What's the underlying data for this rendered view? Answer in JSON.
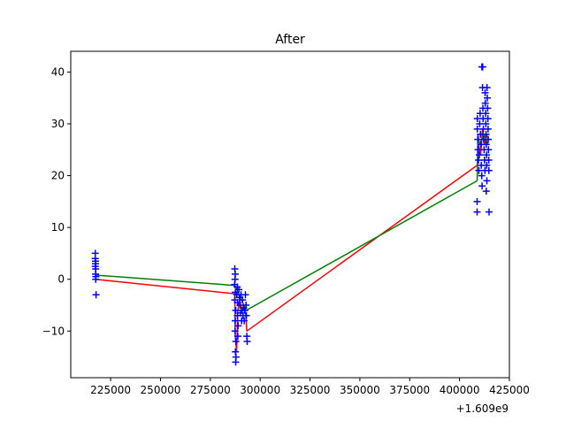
{
  "chart_data": {
    "type": "scatter",
    "title": "After",
    "xlabel": "",
    "ylabel": "",
    "x_offset_text": "+1.609e9",
    "xlim": [
      205000,
      425000
    ],
    "ylim": [
      -19,
      44
    ],
    "x_ticks": [
      225000,
      250000,
      275000,
      300000,
      325000,
      350000,
      375000,
      400000,
      425000
    ],
    "x_tick_labels": [
      "225000",
      "250000",
      "275000",
      "300000",
      "325000",
      "350000",
      "375000",
      "400000",
      "425000"
    ],
    "y_ticks": [
      -10,
      0,
      10,
      20,
      30,
      40
    ],
    "y_tick_labels": [
      "−10",
      "0",
      "10",
      "20",
      "30",
      "40"
    ],
    "grid": false,
    "colors": {
      "points": "#0000ff",
      "red_line": "#ff0000",
      "green_line": "#008000"
    },
    "series": [
      {
        "marker": "plus",
        "color": "#0000ff",
        "points": [
          [
            217300,
            5
          ],
          [
            217300,
            4
          ],
          [
            217400,
            3.5
          ],
          [
            217300,
            2.5
          ],
          [
            217500,
            2
          ],
          [
            217400,
            1
          ],
          [
            217600,
            0.5
          ],
          [
            217500,
            0
          ],
          [
            217700,
            -3
          ],
          [
            217400,
            3
          ],
          [
            287300,
            2
          ],
          [
            287500,
            1
          ],
          [
            287400,
            0
          ],
          [
            287200,
            -1
          ],
          [
            287600,
            -2.5
          ],
          [
            287300,
            -4
          ],
          [
            287700,
            -6
          ],
          [
            287500,
            -8
          ],
          [
            287400,
            -10
          ],
          [
            287800,
            -12
          ],
          [
            287600,
            -14
          ],
          [
            287900,
            -15
          ],
          [
            287700,
            -16
          ],
          [
            288300,
            -3
          ],
          [
            288500,
            -1.5
          ],
          [
            288700,
            -4.5
          ],
          [
            288600,
            -7
          ],
          [
            288900,
            -9
          ],
          [
            288800,
            -11
          ],
          [
            289300,
            -2
          ],
          [
            289600,
            -3.5
          ],
          [
            289900,
            -5
          ],
          [
            290100,
            -6.5
          ],
          [
            290400,
            -3
          ],
          [
            290700,
            -8
          ],
          [
            290900,
            -6
          ],
          [
            291200,
            -4
          ],
          [
            291400,
            -7
          ],
          [
            291700,
            -5.5
          ],
          [
            292000,
            -8
          ],
          [
            292300,
            -6
          ],
          [
            292600,
            -3
          ],
          [
            292900,
            -5
          ],
          [
            293100,
            -7
          ],
          [
            293300,
            -11
          ],
          [
            293500,
            -12
          ],
          [
            408800,
            15
          ],
          [
            408800,
            13
          ],
          [
            408900,
            31
          ],
          [
            408900,
            29
          ],
          [
            409100,
            27
          ],
          [
            409300,
            25
          ],
          [
            409500,
            23
          ],
          [
            409700,
            21
          ],
          [
            409900,
            24
          ],
          [
            410100,
            30
          ],
          [
            410300,
            32
          ],
          [
            410500,
            28
          ],
          [
            410700,
            26
          ],
          [
            410900,
            22
          ],
          [
            411100,
            20
          ],
          [
            411300,
            18
          ],
          [
            411200,
            41
          ],
          [
            411600,
            41
          ],
          [
            411500,
            37
          ],
          [
            411700,
            33
          ],
          [
            411800,
            31
          ],
          [
            411900,
            29
          ],
          [
            412100,
            27
          ],
          [
            412300,
            25
          ],
          [
            412500,
            23
          ],
          [
            412700,
            21
          ],
          [
            412800,
            36
          ],
          [
            412900,
            34
          ],
          [
            413100,
            32
          ],
          [
            413200,
            30
          ],
          [
            413300,
            28
          ],
          [
            413400,
            26
          ],
          [
            413500,
            24
          ],
          [
            413600,
            22
          ],
          [
            413700,
            19
          ],
          [
            413400,
            17
          ],
          [
            413800,
            37
          ],
          [
            413900,
            35
          ],
          [
            414100,
            33
          ],
          [
            414200,
            31
          ],
          [
            414300,
            29
          ],
          [
            414400,
            27
          ],
          [
            414500,
            25
          ],
          [
            414600,
            23
          ],
          [
            414700,
            21
          ],
          [
            414800,
            13
          ]
        ]
      },
      {
        "marker": "line",
        "color": "#ff0000",
        "points": [
          [
            217300,
            0
          ],
          [
            287300,
            -2.8
          ],
          [
            287500,
            -11
          ],
          [
            288200,
            -14
          ],
          [
            288800,
            -6
          ],
          [
            289700,
            -4
          ],
          [
            290800,
            -6
          ],
          [
            291900,
            -5
          ],
          [
            292800,
            -7
          ],
          [
            293300,
            -10
          ],
          [
            408800,
            22
          ],
          [
            409600,
            26
          ],
          [
            410600,
            24
          ],
          [
            411500,
            29
          ],
          [
            412600,
            26
          ],
          [
            413500,
            28
          ],
          [
            414400,
            27
          ]
        ]
      },
      {
        "marker": "line",
        "color": "#008000",
        "points": [
          [
            217300,
            0.8
          ],
          [
            287300,
            -1.2
          ],
          [
            288300,
            -2
          ],
          [
            289300,
            -3
          ],
          [
            290600,
            -4
          ],
          [
            291800,
            -5
          ],
          [
            293000,
            -6
          ],
          [
            408800,
            19
          ],
          [
            409200,
            28
          ],
          [
            410000,
            26
          ],
          [
            411100,
            27
          ],
          [
            412200,
            28
          ],
          [
            413300,
            27
          ],
          [
            414300,
            26
          ]
        ]
      }
    ]
  }
}
